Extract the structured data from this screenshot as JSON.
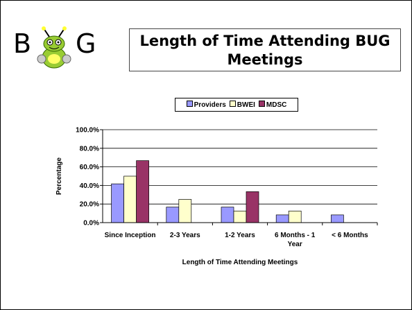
{
  "logo": {
    "left": "B",
    "right": "G"
  },
  "title": "Length of Time Attending BUG Meetings",
  "chart_data": {
    "type": "bar",
    "categories": [
      "Since Inception",
      "2-3 Years",
      "1-2 Years",
      "6 Months - 1 Year",
      "< 6 Months"
    ],
    "series": [
      {
        "name": "Providers",
        "color": "#9999ff",
        "values": [
          41.7,
          16.7,
          16.7,
          8.3,
          8.3
        ]
      },
      {
        "name": "BWEI",
        "color": "#ffffcc",
        "values": [
          50,
          25,
          12.5,
          12.5,
          0
        ]
      },
      {
        "name": "MDSC",
        "color": "#993366",
        "values": [
          66.7,
          0,
          33.3,
          0,
          0
        ]
      }
    ],
    "ylim": [
      0,
      100
    ],
    "yticks": [
      {
        "value": 0,
        "label": "0.0%"
      },
      {
        "value": 20,
        "label": "20.0%"
      },
      {
        "value": 40,
        "label": "40.0%"
      },
      {
        "value": 60,
        "label": "60.0%"
      },
      {
        "value": 80,
        "label": "80.0%"
      },
      {
        "value": 100,
        "label": "100.0%"
      }
    ],
    "grid": true,
    "legend": "top",
    "y_label": "Percentage",
    "x_label": "Length of Time Attending Meetings"
  }
}
